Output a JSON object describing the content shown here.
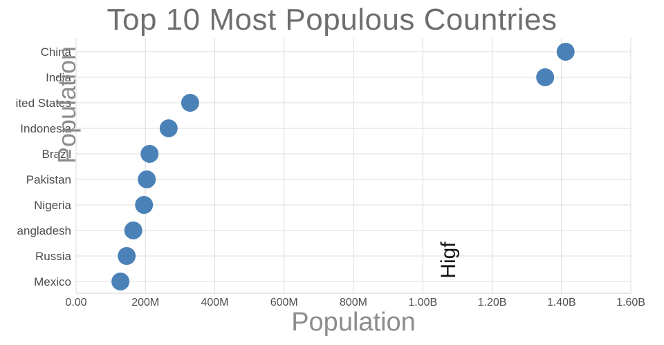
{
  "chart": {
    "title": "Top 10 Most Populous Countries",
    "x_axis_label": "Population",
    "y_axis_label": "Population"
  },
  "chart_data": {
    "type": "scatter",
    "orientation": "horizontal",
    "title": "Top 10 Most Populous Countries",
    "xlabel": "Population",
    "ylabel": "Population",
    "categories": [
      "China",
      "India",
      "ited States",
      "Indonesia",
      "Brazil",
      "Pakistan",
      "Nigeria",
      "angladesh",
      "Russia",
      "Mexico"
    ],
    "values_millions": [
      1412,
      1353,
      329,
      267,
      212,
      204,
      196,
      165,
      146,
      128
    ],
    "xlim_millions": [
      0,
      1600
    ],
    "x_ticks": [
      {
        "label": "0.00",
        "value": 0
      },
      {
        "label": "200M",
        "value": 200
      },
      {
        "label": "400M",
        "value": 400
      },
      {
        "label": "600M",
        "value": 600
      },
      {
        "label": "800M",
        "value": 800
      },
      {
        "label": "1.00B",
        "value": 1000
      },
      {
        "label": "1.20B",
        "value": 1200
      },
      {
        "label": "1.40B",
        "value": 1400
      },
      {
        "label": "1.60B",
        "value": 1600
      }
    ],
    "grid": true,
    "legend": "none",
    "dot_color": "#4a82b8",
    "annotation": {
      "text": "Higf",
      "x_millions": 1075,
      "rotated": true
    }
  }
}
